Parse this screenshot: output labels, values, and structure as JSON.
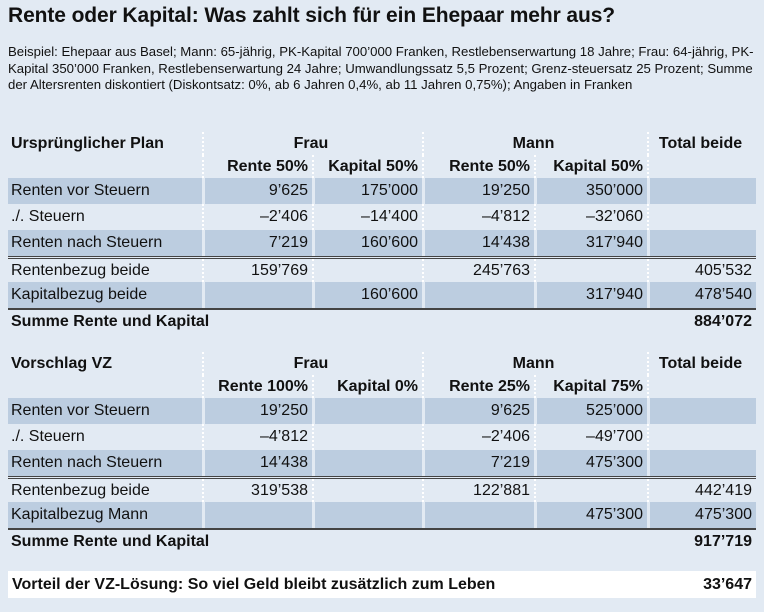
{
  "title": "Rente oder Kapital: Was zahlt sich für ein Ehepaar mehr aus?",
  "intro": "Beispiel: Ehepaar aus Basel; Mann: 65-jährig, PK-Kapital 700’000 Franken, Restlebenserwartung 18 Jahre; Frau: 64-jährig, PK-Kapital 350’000 Franken, Restlebenserwartung 24 Jahre; Umwandlungssatz 5,5 Prozent; Grenz-steuersatz 25 Prozent; Summe der Altersrenten diskontiert (Diskontsatz: 0%, ab 6 Jahren 0,4%, ab 11 Jahren 0,75%); Angaben in Franken",
  "sections": [
    {
      "name": "Ursprünglicher Plan",
      "frau": "Frau",
      "mann": "Mann",
      "total": "Total beide",
      "subheaders": [
        "Rente 50%",
        "Kapital 50%",
        "Rente 50%",
        "Kapital 50%"
      ],
      "rows": [
        {
          "label": "Renten vor Steuern",
          "values": [
            "9’625",
            "175’000",
            "19’250",
            "350’000",
            ""
          ]
        },
        {
          "label": "./. Steuern",
          "values": [
            "–2’406",
            "–14’400",
            "–4’812",
            "–32’060",
            ""
          ]
        },
        {
          "label": "Renten nach Steuern",
          "values": [
            "7’219",
            "160’600",
            "14’438",
            "317’940",
            ""
          ]
        },
        {
          "label": "Rentenbezug beide",
          "values": [
            "159’769",
            "",
            "245’763",
            "",
            "405’532"
          ]
        },
        {
          "label": "Kapitalbezug beide",
          "values": [
            "",
            "160’600",
            "",
            "317’940",
            "478’540"
          ]
        }
      ],
      "sum_label": "Summe Rente und Kapital",
      "sum_value": "884’072"
    },
    {
      "name": "Vorschlag VZ",
      "frau": "Frau",
      "mann": "Mann",
      "total": "Total beide",
      "subheaders": [
        "Rente 100%",
        "Kapital 0%",
        "Rente 25%",
        "Kapital 75%"
      ],
      "rows": [
        {
          "label": "Renten vor Steuern",
          "values": [
            "19’250",
            "",
            "9’625",
            "525’000",
            ""
          ]
        },
        {
          "label": "./. Steuern",
          "values": [
            "–4’812",
            "",
            "–2’406",
            "–49’700",
            ""
          ]
        },
        {
          "label": "Renten nach Steuern",
          "values": [
            "14’438",
            "",
            "7’219",
            "475’300",
            ""
          ]
        },
        {
          "label": "Rentenbezug beide",
          "values": [
            "319’538",
            "",
            "122’881",
            "",
            "442’419"
          ]
        },
        {
          "label": "Kapitalbezug Mann",
          "values": [
            "",
            "",
            "",
            "475’300",
            "475’300"
          ]
        }
      ],
      "sum_label": "Summe Rente und Kapital",
      "sum_value": "917’719"
    }
  ],
  "vorteil": {
    "label": "Vorteil der VZ-Lösung: So viel Geld bleibt zusätzlich zum Leben",
    "value": "33’647"
  }
}
